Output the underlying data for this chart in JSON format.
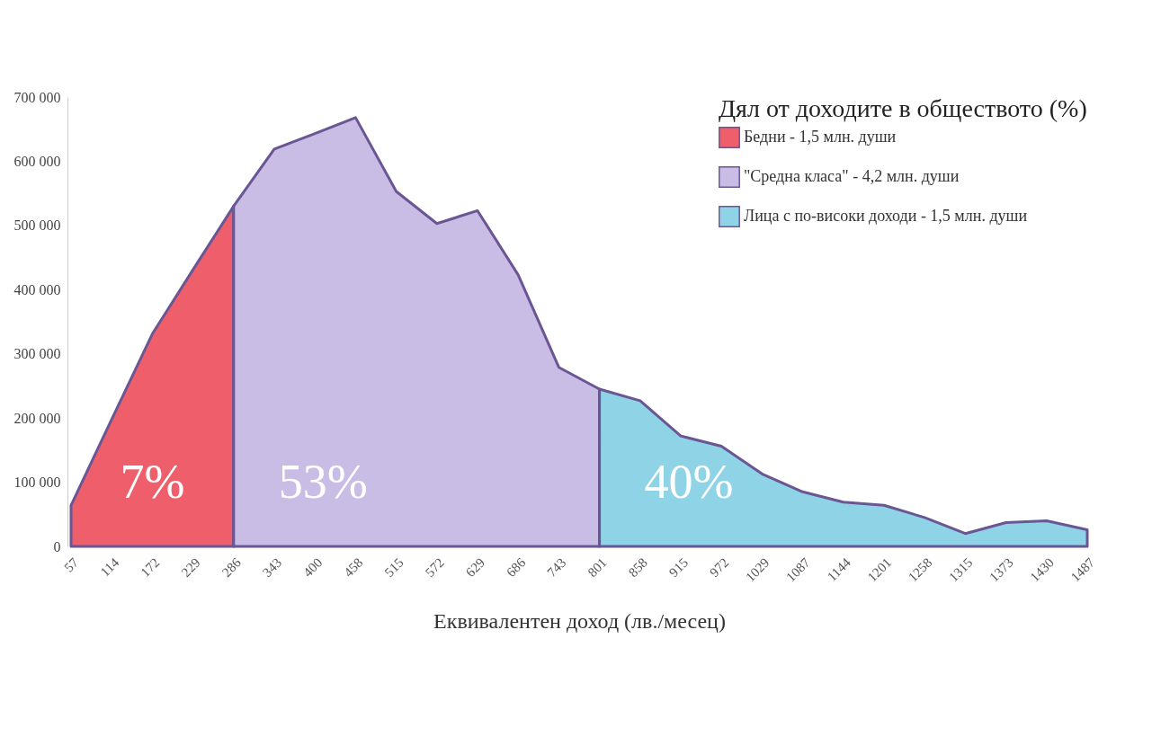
{
  "chart_data": {
    "type": "area",
    "legend_title": "Дял от доходите в обществото (%)",
    "xlabel": "Еквивалентен доход (лв./месец)",
    "categories": [
      "57",
      "114",
      "172",
      "229",
      "286",
      "343",
      "400",
      "458",
      "515",
      "572",
      "629",
      "686",
      "743",
      "801",
      "858",
      "915",
      "972",
      "1029",
      "1087",
      "1144",
      "1201",
      "1258",
      "1315",
      "1373",
      "1430",
      "1487"
    ],
    "series": [
      {
        "name": "Бедни - 1,5 млн. души",
        "color": "#ef5f6b",
        "values": [
          64000,
          198000,
          331000,
          431000,
          530000,
          null,
          null,
          null,
          null,
          null,
          null,
          null,
          null,
          null,
          null,
          null,
          null,
          null,
          null,
          null,
          null,
          null,
          null,
          null,
          null,
          null
        ]
      },
      {
        "name": "\"Средна класа\" - 4,2 млн. души",
        "color": "#c9bde6",
        "values": [
          null,
          null,
          null,
          null,
          530000,
          619000,
          643000,
          668000,
          553000,
          503000,
          523000,
          423000,
          279000,
          245000,
          null,
          null,
          null,
          null,
          null,
          null,
          null,
          null,
          null,
          null,
          null,
          null
        ]
      },
      {
        "name": "Лица с по-високи доходи - 1,5 млн. души",
        "color": "#8fd3e6",
        "values": [
          null,
          null,
          null,
          null,
          null,
          null,
          null,
          null,
          null,
          null,
          null,
          null,
          null,
          245000,
          227000,
          172000,
          156000,
          113000,
          85000,
          69000,
          64000,
          45000,
          20000,
          37000,
          40000,
          26000
        ]
      }
    ],
    "ylim": [
      0,
      700000
    ],
    "yticks": [
      {
        "value": 0,
        "label": "0"
      },
      {
        "value": 100000,
        "label": "100 000"
      },
      {
        "value": 200000,
        "label": "200 000"
      },
      {
        "value": 300000,
        "label": "300 000"
      },
      {
        "value": 400000,
        "label": "400 000"
      },
      {
        "value": 500000,
        "label": "500 000"
      },
      {
        "value": 600000,
        "label": "600 000"
      },
      {
        "value": 700000,
        "label": "700 000"
      }
    ],
    "legend": "top right",
    "annotations": [
      "7%",
      "53%",
      "40%"
    ]
  }
}
